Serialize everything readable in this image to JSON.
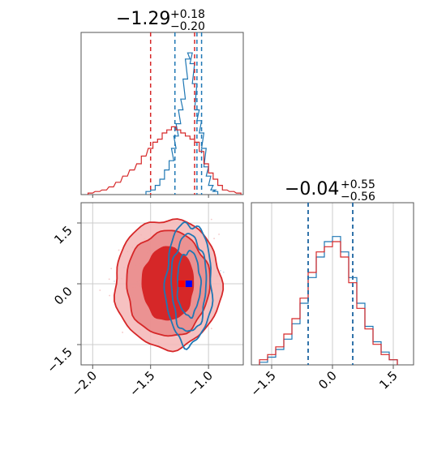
{
  "chart_data": [
    {
      "type": "histogram",
      "panel": "x-marginal",
      "title": {
        "value": "−1.29",
        "plus": "+0.18",
        "minus": "−0.20"
      },
      "xlim": [
        -2.1,
        -0.7
      ],
      "series": [
        {
          "name": "",
          "color": "#1f77b4",
          "bins": [
            [
              -1.52,
              2
            ],
            [
              -1.48,
              3
            ],
            [
              -1.44,
              6
            ],
            [
              -1.4,
              10
            ],
            [
              -1.36,
              16
            ],
            [
              -1.32,
              22
            ],
            [
              -1.3,
              30
            ],
            [
              -1.28,
              38
            ],
            [
              -1.26,
              46
            ],
            [
              -1.24,
              55
            ],
            [
              -1.22,
              62
            ],
            [
              -1.2,
              75
            ],
            [
              -1.18,
              88
            ],
            [
              -1.16,
              92
            ],
            [
              -1.14,
              85
            ],
            [
              -1.12,
              72
            ],
            [
              -1.1,
              55
            ],
            [
              -1.08,
              48
            ],
            [
              -1.06,
              40
            ],
            [
              -1.04,
              30
            ],
            [
              -1.02,
              18
            ],
            [
              -1.0,
              12
            ],
            [
              -0.98,
              6
            ],
            [
              -0.96,
              3
            ],
            [
              -0.94,
              2
            ]
          ],
          "quantiles": [
            -1.29,
            -1.1,
            -1.06
          ]
        },
        {
          "name": "",
          "color": "#d62728",
          "bins": [
            [
              -2.02,
              1
            ],
            [
              -1.96,
              2
            ],
            [
              -1.9,
              3
            ],
            [
              -1.84,
              5
            ],
            [
              -1.78,
              8
            ],
            [
              -1.72,
              12
            ],
            [
              -1.66,
              16
            ],
            [
              -1.6,
              20
            ],
            [
              -1.56,
              25
            ],
            [
              -1.5,
              30
            ],
            [
              -1.46,
              34
            ],
            [
              -1.42,
              36
            ],
            [
              -1.38,
              40
            ],
            [
              -1.34,
              42
            ],
            [
              -1.3,
              44
            ],
            [
              -1.26,
              42
            ],
            [
              -1.22,
              40
            ],
            [
              -1.18,
              38
            ],
            [
              -1.14,
              36
            ],
            [
              -1.1,
              34
            ],
            [
              -1.06,
              28
            ],
            [
              -1.02,
              20
            ],
            [
              -0.98,
              14
            ],
            [
              -0.94,
              10
            ],
            [
              -0.9,
              6
            ],
            [
              -0.86,
              3
            ],
            [
              -0.8,
              2
            ],
            [
              -0.74,
              1
            ]
          ],
          "quantiles": [
            -1.5,
            -1.12
          ]
        }
      ]
    },
    {
      "type": "contour",
      "panel": "joint",
      "xlim": [
        -2.1,
        -0.7
      ],
      "ylim": [
        -2.0,
        2.0
      ],
      "xticks": [
        "−2.0",
        "−1.5",
        "−1.0"
      ],
      "yticks": [
        "−1.5",
        "0.0",
        "1.5"
      ],
      "truth": {
        "x": -1.17,
        "y": 0.0
      },
      "series": [
        {
          "name": "",
          "color": "#d62728",
          "center": [
            -1.35,
            0.0
          ],
          "levels": [
            [
              0.22,
              0.9
            ],
            [
              0.36,
              1.3
            ],
            [
              0.46,
              1.6
            ]
          ]
        },
        {
          "name": "",
          "color": "#1f77b4",
          "center": [
            -1.17,
            0.0
          ],
          "levels": [
            [
              0.1,
              0.8
            ],
            [
              0.15,
              1.2
            ],
            [
              0.2,
              1.5
            ]
          ]
        }
      ]
    },
    {
      "type": "histogram",
      "panel": "y-marginal",
      "title": {
        "value": "−0.04",
        "plus": "+0.55",
        "minus": "−0.56"
      },
      "xlim": [
        -2.0,
        2.0
      ],
      "xticks": [
        "−1.5",
        "0.0",
        "1.5"
      ],
      "series": [
        {
          "name": "",
          "color": "#1f77b4",
          "bins": [
            [
              -1.7,
              1
            ],
            [
              -1.5,
              3
            ],
            [
              -1.3,
              6
            ],
            [
              -1.1,
              10
            ],
            [
              -0.9,
              16
            ],
            [
              -0.7,
              24
            ],
            [
              -0.5,
              34
            ],
            [
              -0.3,
              42
            ],
            [
              -0.1,
              48
            ],
            [
              0.1,
              50
            ],
            [
              0.3,
              44
            ],
            [
              0.5,
              34
            ],
            [
              0.7,
              24
            ],
            [
              0.9,
              15
            ],
            [
              1.1,
              9
            ],
            [
              1.3,
              5
            ],
            [
              1.5,
              2
            ]
          ],
          "quantiles": [
            -0.6,
            0.5
          ]
        },
        {
          "name": "",
          "color": "#d62728",
          "bins": [
            [
              -1.7,
              2
            ],
            [
              -1.5,
              4
            ],
            [
              -1.3,
              7
            ],
            [
              -1.1,
              12
            ],
            [
              -0.9,
              18
            ],
            [
              -0.7,
              26
            ],
            [
              -0.5,
              36
            ],
            [
              -0.3,
              44
            ],
            [
              -0.1,
              46
            ],
            [
              0.1,
              48
            ],
            [
              0.3,
              42
            ],
            [
              0.5,
              32
            ],
            [
              0.7,
              22
            ],
            [
              0.9,
              14
            ],
            [
              1.1,
              8
            ],
            [
              1.3,
              4
            ],
            [
              1.5,
              2
            ]
          ],
          "quantiles": [
            -0.6,
            0.5
          ]
        }
      ]
    }
  ]
}
